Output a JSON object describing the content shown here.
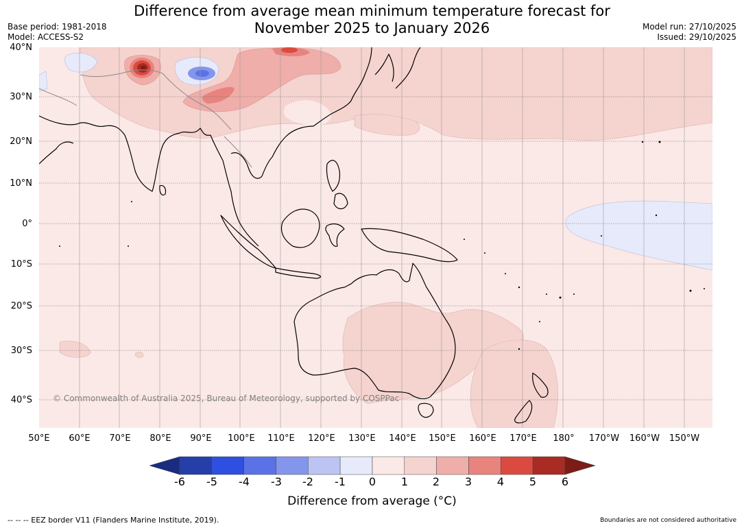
{
  "header": {
    "title_line1": "Difference from average mean minimum temperature forecast for",
    "title_line2": "November 2025 to January 2026",
    "base_period": "Base period: 1981-2018",
    "model": "Model: ACCESS-S2",
    "model_run": "Model run: 27/10/2025",
    "issued": "Issued: 29/10/2025"
  },
  "map": {
    "lat_labels": [
      "40°N",
      "30°N",
      "20°N",
      "10°N",
      "0°",
      "10°S",
      "20°S",
      "30°S",
      "40°S"
    ],
    "lon_labels": [
      "50°E",
      "60°E",
      "70°E",
      "80°E",
      "90°E",
      "100°E",
      "110°E",
      "120°E",
      "130°E",
      "140°E",
      "150°E",
      "160°E",
      "170°E",
      "180°",
      "170°W",
      "160°W",
      "150°W"
    ],
    "copyright": "© Commonwealth of Australia 2025, Bureau of Meteorology, supported by COSPPac",
    "background_color": "#fbe9e7"
  },
  "colorbar": {
    "ticks": [
      "-6",
      "-5",
      "-4",
      "-3",
      "-2",
      "-1",
      "0",
      "1",
      "2",
      "3",
      "4",
      "5",
      "6"
    ],
    "colors": [
      "#263ea8",
      "#2f4fe0",
      "#5a72e6",
      "#8495ec",
      "#bcc4f3",
      "#e7eafb",
      "#fbe9e7",
      "#f5d3cf",
      "#efaeaa",
      "#e9837d",
      "#db4a3f",
      "#aa2a24"
    ],
    "under_color": "#1a2c80",
    "over_color": "#7d1c16",
    "label": "Difference from average (°C)"
  },
  "footer": {
    "eez_note": "--  --  -- EEZ border V11 (Flanders Marine Institute, 2019).",
    "boundary_note": "Boundaries are not considered authoritative"
  }
}
